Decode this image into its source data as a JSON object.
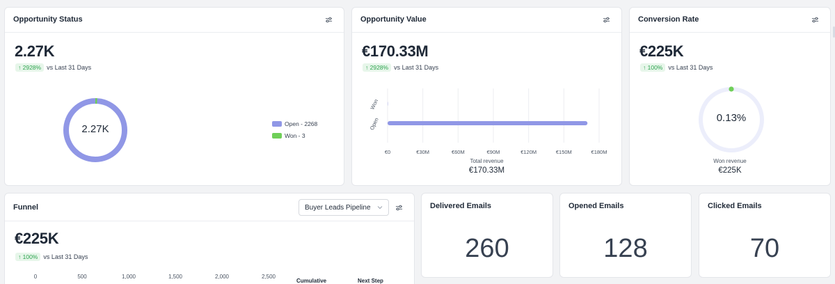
{
  "opportunity_status": {
    "title": "Opportunity Status",
    "value": "2.27K",
    "change_pct": "2928%",
    "change_label": "vs Last 31 Days",
    "donut_center": "2.27K",
    "legend": [
      {
        "label": "Open - 2268",
        "color": "#9097e6"
      },
      {
        "label": "Won - 3",
        "color": "#6fcf58"
      }
    ],
    "icon": "filter-sliders-icon"
  },
  "opportunity_value": {
    "title": "Opportunity Value",
    "value": "€170.33M",
    "change_pct": "2928%",
    "change_label": "vs Last 31 Days",
    "footer_label": "Total revenue",
    "footer_value": "€170.33M",
    "icon": "filter-sliders-icon",
    "chart_data": {
      "type": "bar",
      "orientation": "horizontal",
      "categories": [
        "Won",
        "Open"
      ],
      "values": [
        0.22,
        170.11
      ],
      "xticks": [
        "€0",
        "€30M",
        "€60M",
        "€90M",
        "€120M",
        "€150M",
        "€180M"
      ],
      "xlim": [
        0,
        180
      ],
      "x_unit": "€M",
      "bar_color": "#9097e6",
      "grid": true
    }
  },
  "conversion_rate": {
    "title": "Conversion Rate",
    "value": "€225K",
    "change_pct": "100%",
    "change_label": "vs Last 31 Days",
    "gauge_center": "0.13%",
    "gauge_fraction": 0.0013,
    "footer_label": "Won revenue",
    "footer_value": "€225K",
    "icon": "filter-sliders-icon"
  },
  "funnel": {
    "title": "Funnel",
    "pipeline_select": "Buyer Leads Pipeline",
    "value": "€225K",
    "change_pct": "100%",
    "change_label": "vs Last 31 Days",
    "axis_ticks": [
      "0",
      "500",
      "1,000",
      "1,500",
      "2,000",
      "2,500"
    ],
    "col_cumulative": "Cumulative",
    "col_next_step": "Next Step",
    "icon": "filter-sliders-icon"
  },
  "emails": [
    {
      "title": "Delivered Emails",
      "value": "260"
    },
    {
      "title": "Opened Emails",
      "value": "128"
    },
    {
      "title": "Clicked Emails",
      "value": "70"
    }
  ],
  "colors": {
    "accent": "#9097e6",
    "won": "#6fcf58",
    "track": "#eceefb",
    "positive": "#2ea44f"
  }
}
